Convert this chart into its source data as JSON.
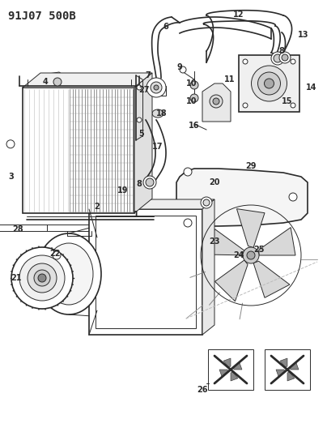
{
  "title_code": "91J07 500B",
  "background_color": "#ffffff",
  "line_color": "#2a2a2a",
  "figsize": [
    4.04,
    5.33
  ],
  "dpi": 100,
  "title_fontsize": 10,
  "label_fontsize": 7
}
